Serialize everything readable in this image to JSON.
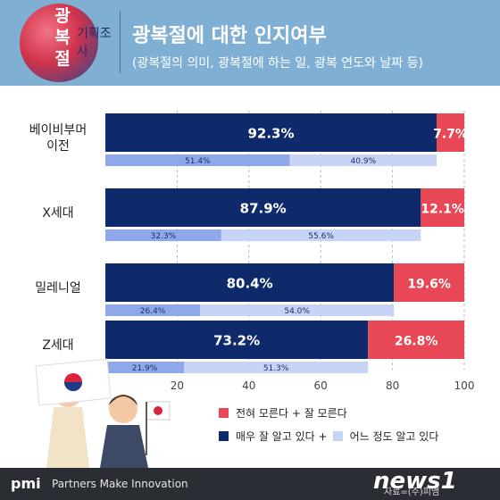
{
  "header": {
    "badge_big": "광복절",
    "badge_small": "기획조사",
    "title": "광복절에 대한 인지여부",
    "subtitle": "(광복절의 의미, 광복절에 하는 일, 광복 연도와 날짜 등)"
  },
  "chart_data": {
    "type": "bar",
    "orientation": "horizontal",
    "stacked": true,
    "categories": [
      "베이비부머\n이전",
      "X세대",
      "밀레니얼",
      "Z세대"
    ],
    "xlim": [
      0,
      100
    ],
    "xticks": [
      "20",
      "40",
      "60",
      "80",
      "100"
    ],
    "grid": true,
    "bars_main": [
      {
        "series": "매우 잘 알고 있다 + 어느 정도 알고 있다",
        "values": [
          92.3,
          87.9,
          80.4,
          73.2
        ],
        "labels": [
          "92.3%",
          "87.9%",
          "80.4%",
          "73.2%"
        ],
        "color": "#0f2a6b"
      },
      {
        "series": "전혀 모른다 + 잘 모른다",
        "values": [
          7.7,
          12.1,
          19.6,
          26.8
        ],
        "labels": [
          "7.7%",
          "12.1%",
          "19.6%",
          "26.8%"
        ],
        "color": "#e84855"
      }
    ],
    "bars_breakdown": [
      {
        "series": "매우 잘 알고 있다",
        "values": [
          51.4,
          32.3,
          26.4,
          21.9
        ],
        "labels": [
          "51.4%",
          "32.3%",
          "26.4%",
          "21.9%"
        ],
        "color": "#8fa8ea"
      },
      {
        "series": "어느 정도 알고 있다",
        "values": [
          40.9,
          55.6,
          54.0,
          51.3
        ],
        "labels": [
          "40.9%",
          "55.6%",
          "54.0%",
          "51.3%"
        ],
        "color": "#c7d4f6"
      }
    ],
    "legend": {
      "placement": "bottom-right",
      "row1": "전혀 모른다 + 잘 모른다",
      "row2_a": "매우 잘 알고 있다 +",
      "row2_b": "어느 정도 알고 있다"
    }
  },
  "footer": {
    "logo": "pmi",
    "tagline": "Partners Make Innovation",
    "news_logo": "news1",
    "source": "자료=(주)피앰"
  },
  "colors": {
    "header_bg": "#7fb0d4",
    "navy": "#0f2a6b",
    "red": "#e84855",
    "light_blue": "#8fa8ea",
    "pale_blue": "#c7d4f6"
  }
}
